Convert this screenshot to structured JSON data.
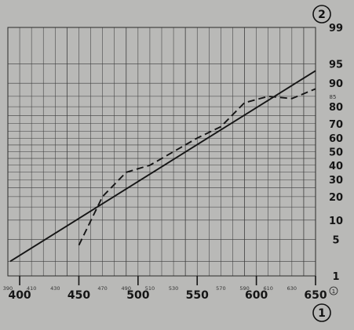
{
  "chart_data": {
    "type": "line",
    "title": "",
    "xlabel": "",
    "ylabel": "",
    "corner_marks": {
      "top_right": "2",
      "bottom_right": "1",
      "bottom_axis_small": "1"
    },
    "scale": "probability",
    "xlim": [
      390,
      650
    ],
    "ylim": [
      1,
      99
    ],
    "x_ticks_large": [
      "400",
      "450",
      "500",
      "550",
      "600",
      "650"
    ],
    "x_ticks_small": [
      "390",
      "410",
      "430",
      "470",
      "490",
      "510",
      "530",
      "570",
      "590",
      "610",
      "630"
    ],
    "y_ticks_large": [
      "1",
      "5",
      "10",
      "20",
      "30",
      "40",
      "50",
      "60",
      "70",
      "80",
      "90",
      "95",
      "99"
    ],
    "y_ticks_small": [
      "85"
    ],
    "grid": true,
    "series": [
      {
        "style": "solid",
        "color": "#151515",
        "x": [
          392,
          650
        ],
        "y": [
          2.0,
          93.5
        ]
      },
      {
        "style": "dashed",
        "color": "#151515",
        "x": [
          450,
          470,
          490,
          510,
          530,
          550,
          570,
          590,
          610,
          630,
          650
        ],
        "y": [
          4,
          20,
          35,
          40,
          50,
          60,
          68,
          82,
          85,
          84,
          88
        ]
      }
    ]
  }
}
